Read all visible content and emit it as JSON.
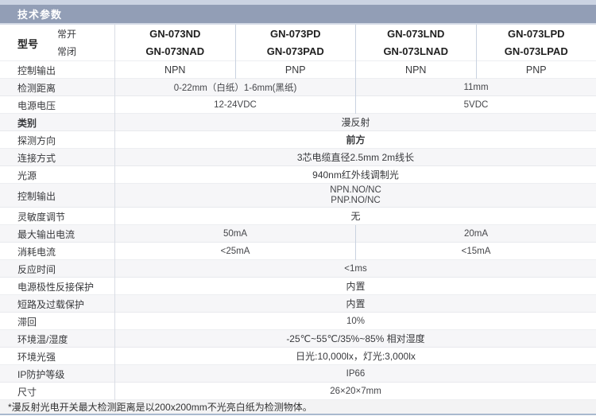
{
  "header": {
    "title": "技术参数"
  },
  "model_row": {
    "label": "型号",
    "sub_labels": [
      "常开",
      "常闭"
    ],
    "columns": [
      {
        "no": "GN-073ND",
        "nc": "GN-073NAD"
      },
      {
        "no": "GN-073PD",
        "nc": "GN-073PAD"
      },
      {
        "no": "GN-073LND",
        "nc": "GN-073LNAD"
      },
      {
        "no": "GN-073LPD",
        "nc": "GN-073LPAD"
      }
    ]
  },
  "rows": {
    "control_output": {
      "label": "控制输出",
      "values": [
        "NPN",
        "PNP",
        "NPN",
        "PNP"
      ]
    },
    "detect_distance": {
      "label": "检测距离",
      "left": "0-22mm（白纸）1-6mm(黑纸)",
      "right": "11mm"
    },
    "supply_voltage": {
      "label": "电源电压",
      "left": "12-24VDC",
      "right": "5VDC"
    },
    "category": {
      "label": "类别",
      "value": "漫反射"
    },
    "detect_direction": {
      "label": "探测方向",
      "value": "前方"
    },
    "connection": {
      "label": "连接方式",
      "value": "3芯电缆直径2.5mm 2m线长"
    },
    "light_source": {
      "label": "光源",
      "value": "940nm红外线调制光"
    },
    "output_type": {
      "label": "控制输出",
      "line1": "NPN.NO/NC",
      "line2": "PNP.NO/NC"
    },
    "sensitivity": {
      "label": "灵敏度调节",
      "value": "无"
    },
    "max_output_current": {
      "label": "最大输出电流",
      "left": "50mA",
      "right": "20mA"
    },
    "consumption_current": {
      "label": "消耗电流",
      "left": "<25mA",
      "right": "<15mA"
    },
    "response_time": {
      "label": "反应时间",
      "value": "<1ms"
    },
    "reverse_polarity_protection": {
      "label": "电源极性反接保护",
      "value": "内置"
    },
    "short_circuit_protection": {
      "label": "短路及过载保护",
      "value": "内置"
    },
    "hysteresis": {
      "label": "滞回",
      "value": "10%"
    },
    "ambient_temp_humidity": {
      "label": "环境温/湿度",
      "value": "-25℃~55℃/35%~85% 相对湿度"
    },
    "ambient_light": {
      "label": "环境光强",
      "value": "日光:10,000lx，灯光:3,000lx"
    },
    "ip_rating": {
      "label": "IP防护等级",
      "value": "IP66"
    },
    "dimensions": {
      "label": "尺寸",
      "value": "26×20×7mm"
    }
  },
  "footnote": "*漫反射光电开关最大检测距离是以200x200mm不光亮白纸为检测物体。",
  "colors": {
    "header_bg": "#929eb6",
    "top_strip": "#cbd3e2",
    "row_stripe": "#f6f6f8",
    "column_divider": "#c9d2e0",
    "bottom_border": "#a8b9ce",
    "footnote_bg": "#f3f3f4"
  }
}
